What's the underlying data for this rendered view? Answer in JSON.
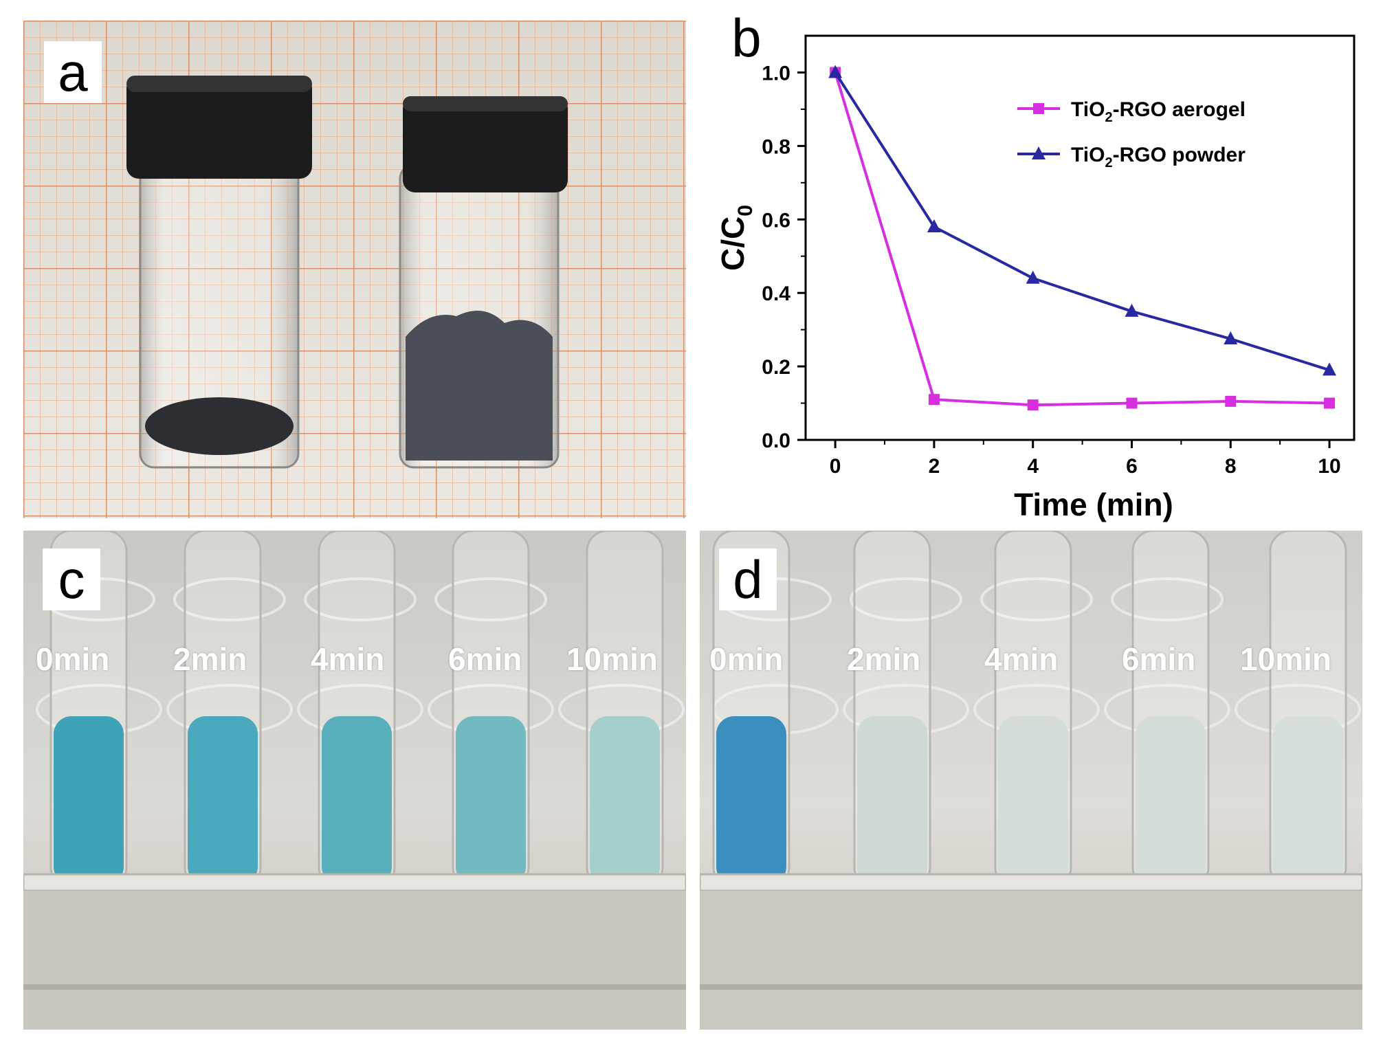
{
  "panels": {
    "a": {
      "label": "a"
    },
    "b": {
      "label": "b"
    },
    "c": {
      "label": "c",
      "tube_labels": [
        "0min",
        "2min",
        "4min",
        "6min",
        "10min"
      ]
    },
    "d": {
      "label": "d",
      "tube_labels": [
        "0min",
        "2min",
        "4min",
        "6min",
        "10min"
      ]
    }
  },
  "chart_data": {
    "type": "line",
    "xlabel": "Time (min)",
    "ylabel": "C/C0",
    "xlim": [
      -0.6,
      10.5
    ],
    "ylim": [
      0.0,
      1.1
    ],
    "xticks": [
      0,
      2,
      4,
      6,
      8,
      10
    ],
    "yticks": [
      0.0,
      0.2,
      0.4,
      0.6,
      0.8,
      1.0
    ],
    "grid": false,
    "legend_position": "top-right",
    "series": [
      {
        "name": "TiO2-RGO aerogel",
        "color": "#d62ee0",
        "marker": "square",
        "x": [
          0,
          2,
          4,
          6,
          8,
          10
        ],
        "y": [
          1.0,
          0.11,
          0.095,
          0.1,
          0.105,
          0.1
        ]
      },
      {
        "name": "TiO2-RGO powder",
        "color": "#2a27a3",
        "marker": "triangle",
        "x": [
          0,
          2,
          4,
          6,
          8,
          10
        ],
        "y": [
          1.0,
          0.58,
          0.44,
          0.35,
          0.275,
          0.19
        ]
      }
    ]
  }
}
